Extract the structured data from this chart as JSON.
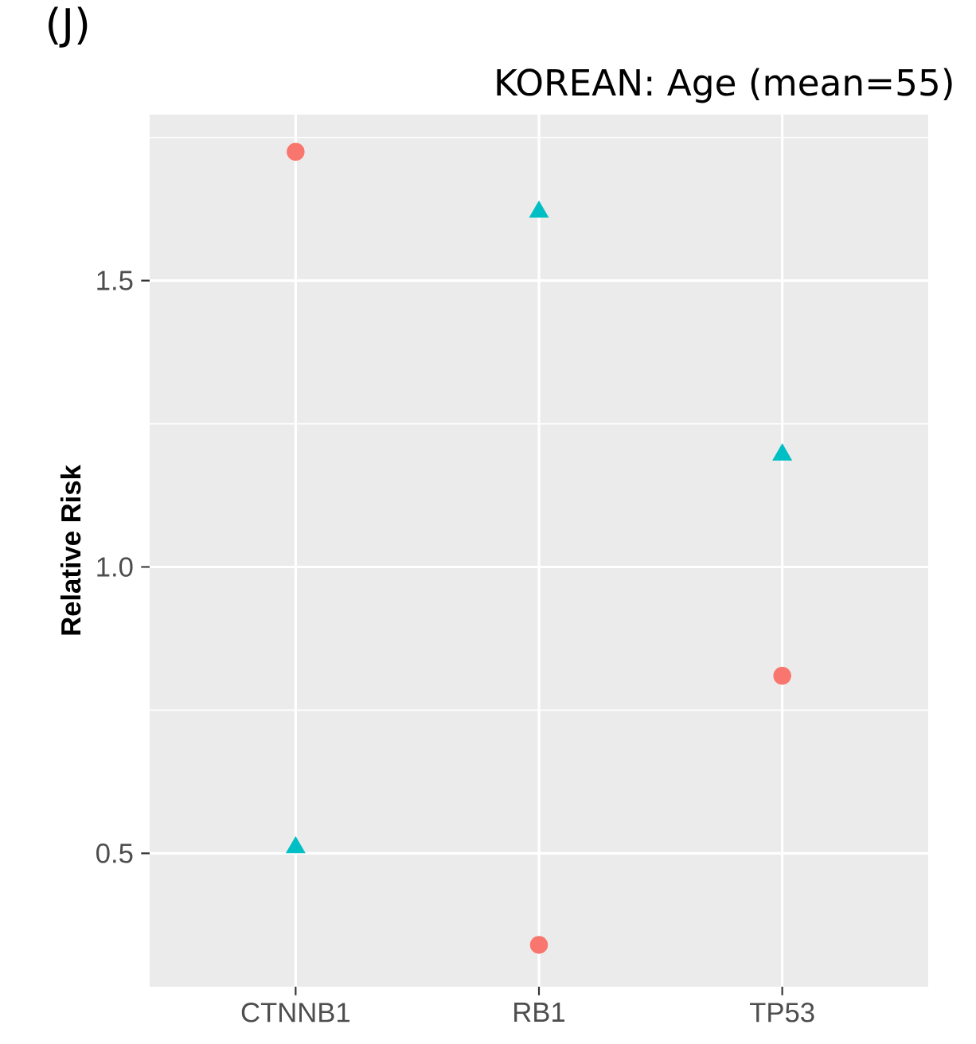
{
  "chart_data": {
    "type": "scatter",
    "title": "KOREAN: Age (mean=55)",
    "ylabel": "Relative Risk",
    "annotations": [
      "(J)"
    ],
    "categories": [
      "CTNNB1",
      "RB1",
      "TP53"
    ],
    "series": [
      {
        "color": "#f8766d",
        "marker": "circle",
        "values": [
          1.725,
          0.34,
          0.81
        ]
      },
      {
        "color": "#00bfc4",
        "marker": "triangle",
        "values": [
          0.51,
          1.62,
          1.196
        ]
      }
    ],
    "ylim": [
      0.267,
      1.79
    ],
    "yticks": [
      0.5,
      {
        "value": 1.0,
        "label": "1.0"
      },
      1.5
    ],
    "grid": true
  }
}
